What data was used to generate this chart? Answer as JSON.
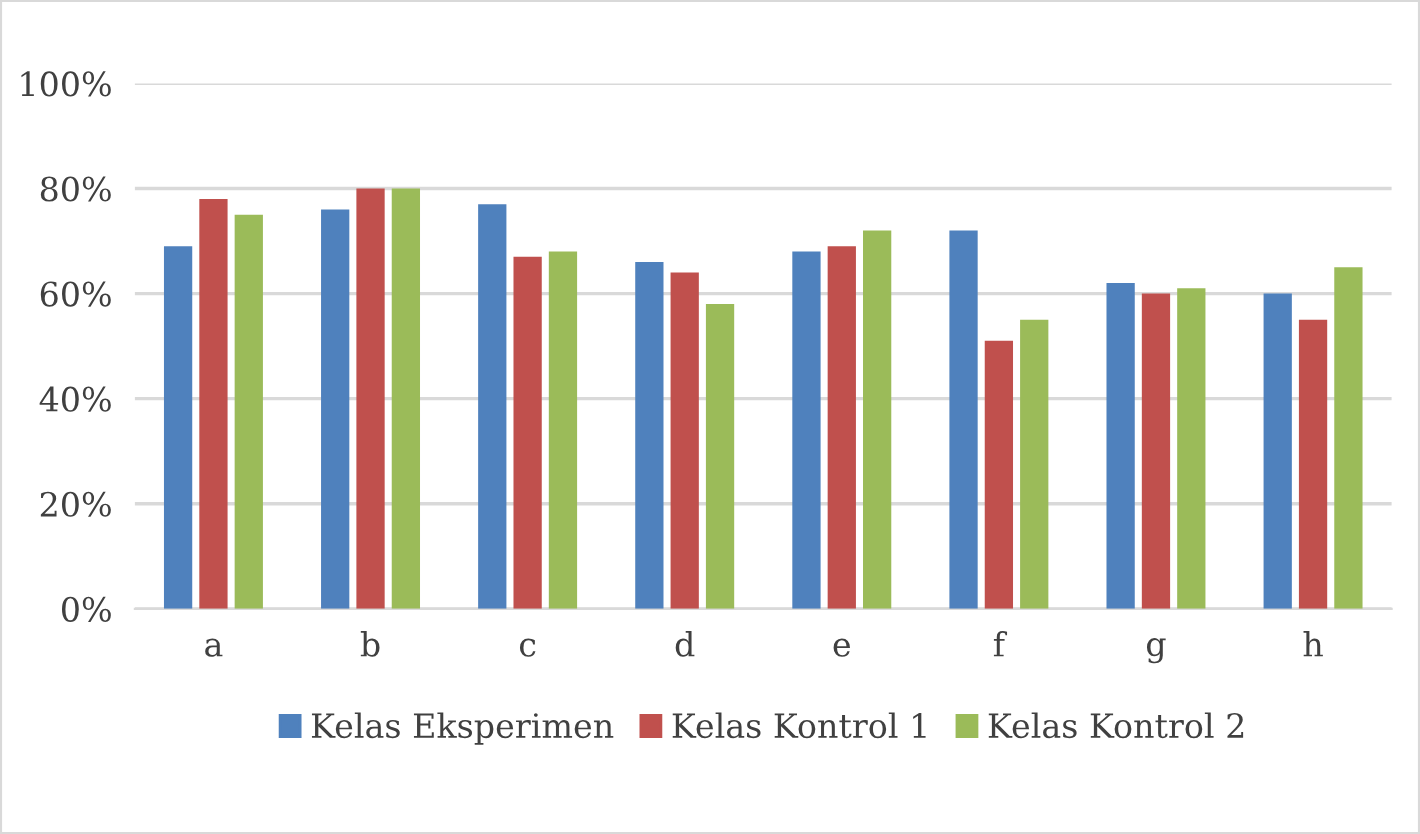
{
  "chart_data": {
    "type": "bar",
    "categories": [
      "a",
      "b",
      "c",
      "d",
      "e",
      "f",
      "g",
      "h"
    ],
    "series": [
      {
        "name": "Kelas Eksperimen",
        "color": "#4f81bd",
        "values": [
          69,
          76,
          77,
          66,
          68,
          72,
          62,
          60
        ]
      },
      {
        "name": "Kelas Kontrol 1",
        "color": "#c0504d",
        "values": [
          78,
          80,
          67,
          64,
          69,
          51,
          60,
          55
        ]
      },
      {
        "name": "Kelas Kontrol 2",
        "color": "#9bbb59",
        "values": [
          75,
          80,
          68,
          58,
          72,
          55,
          61,
          65
        ]
      }
    ],
    "ylim": [
      0,
      100
    ],
    "yticks": [
      {
        "value": 0,
        "label": "0%"
      },
      {
        "value": 20,
        "label": "20%"
      },
      {
        "value": 40,
        "label": "40%"
      },
      {
        "value": 60,
        "label": "60%"
      },
      {
        "value": 80,
        "label": "80%"
      },
      {
        "value": 100,
        "label": "100%"
      }
    ],
    "grid": "y",
    "legend": "bottom"
  }
}
